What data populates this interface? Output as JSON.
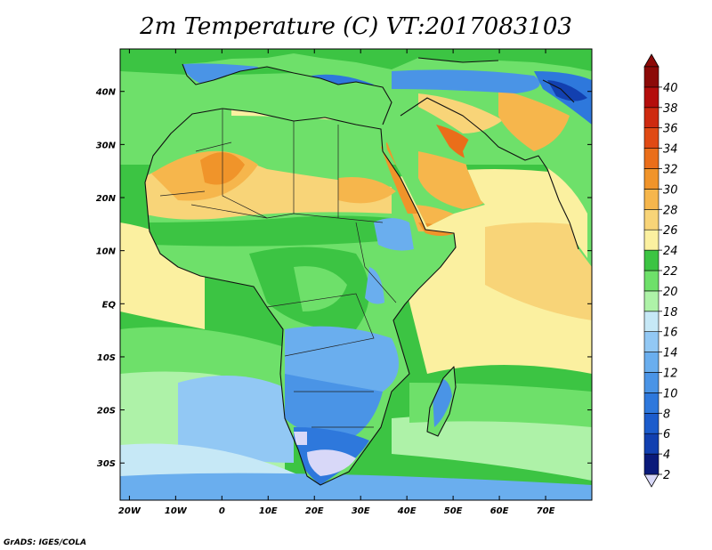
{
  "title": "2m Temperature (C) VT:2017083103",
  "credit": "GrADS: IGES/COLA",
  "chart_data": {
    "type": "heatmap",
    "title": "2m Temperature (C) VT:2017083103",
    "valid_time": "2017083103",
    "units": "C",
    "x_axis": {
      "range": [
        -22,
        80
      ],
      "ticks": [
        {
          "value": -20,
          "label": "20W"
        },
        {
          "value": -10,
          "label": "10W"
        },
        {
          "value": 0,
          "label": "0"
        },
        {
          "value": 10,
          "label": "10E"
        },
        {
          "value": 20,
          "label": "20E"
        },
        {
          "value": 30,
          "label": "30E"
        },
        {
          "value": 40,
          "label": "40E"
        },
        {
          "value": 50,
          "label": "50E"
        },
        {
          "value": 60,
          "label": "60E"
        },
        {
          "value": 70,
          "label": "70E"
        }
      ]
    },
    "y_axis": {
      "range": [
        -37,
        48
      ],
      "ticks": [
        {
          "value": 40,
          "label": "40N"
        },
        {
          "value": 30,
          "label": "30N"
        },
        {
          "value": 20,
          "label": "20N"
        },
        {
          "value": 10,
          "label": "10N"
        },
        {
          "value": 0,
          "label": "EQ"
        },
        {
          "value": -10,
          "label": "10S"
        },
        {
          "value": -20,
          "label": "20S"
        },
        {
          "value": -30,
          "label": "30S"
        }
      ]
    },
    "colorbar": {
      "levels": [
        "2",
        "4",
        "6",
        "8",
        "10",
        "12",
        "14",
        "16",
        "18",
        "20",
        "22",
        "24",
        "26",
        "28",
        "30",
        "32",
        "34",
        "36",
        "38",
        "40"
      ],
      "colors": [
        "#d8d8f8",
        "#0a1a7a",
        "#1240b0",
        "#1c5ccc",
        "#2e78dc",
        "#4a94e6",
        "#6aaeee",
        "#92c8f4",
        "#c6e8f6",
        "#aef2a8",
        "#6ee06a",
        "#3cc443",
        "#fbf0a0",
        "#f8d478",
        "#f6b64c",
        "#f0942a",
        "#ea6e1a",
        "#e04a14",
        "#ce2a10",
        "#b40e0c",
        "#8c0a08"
      ]
    }
  }
}
